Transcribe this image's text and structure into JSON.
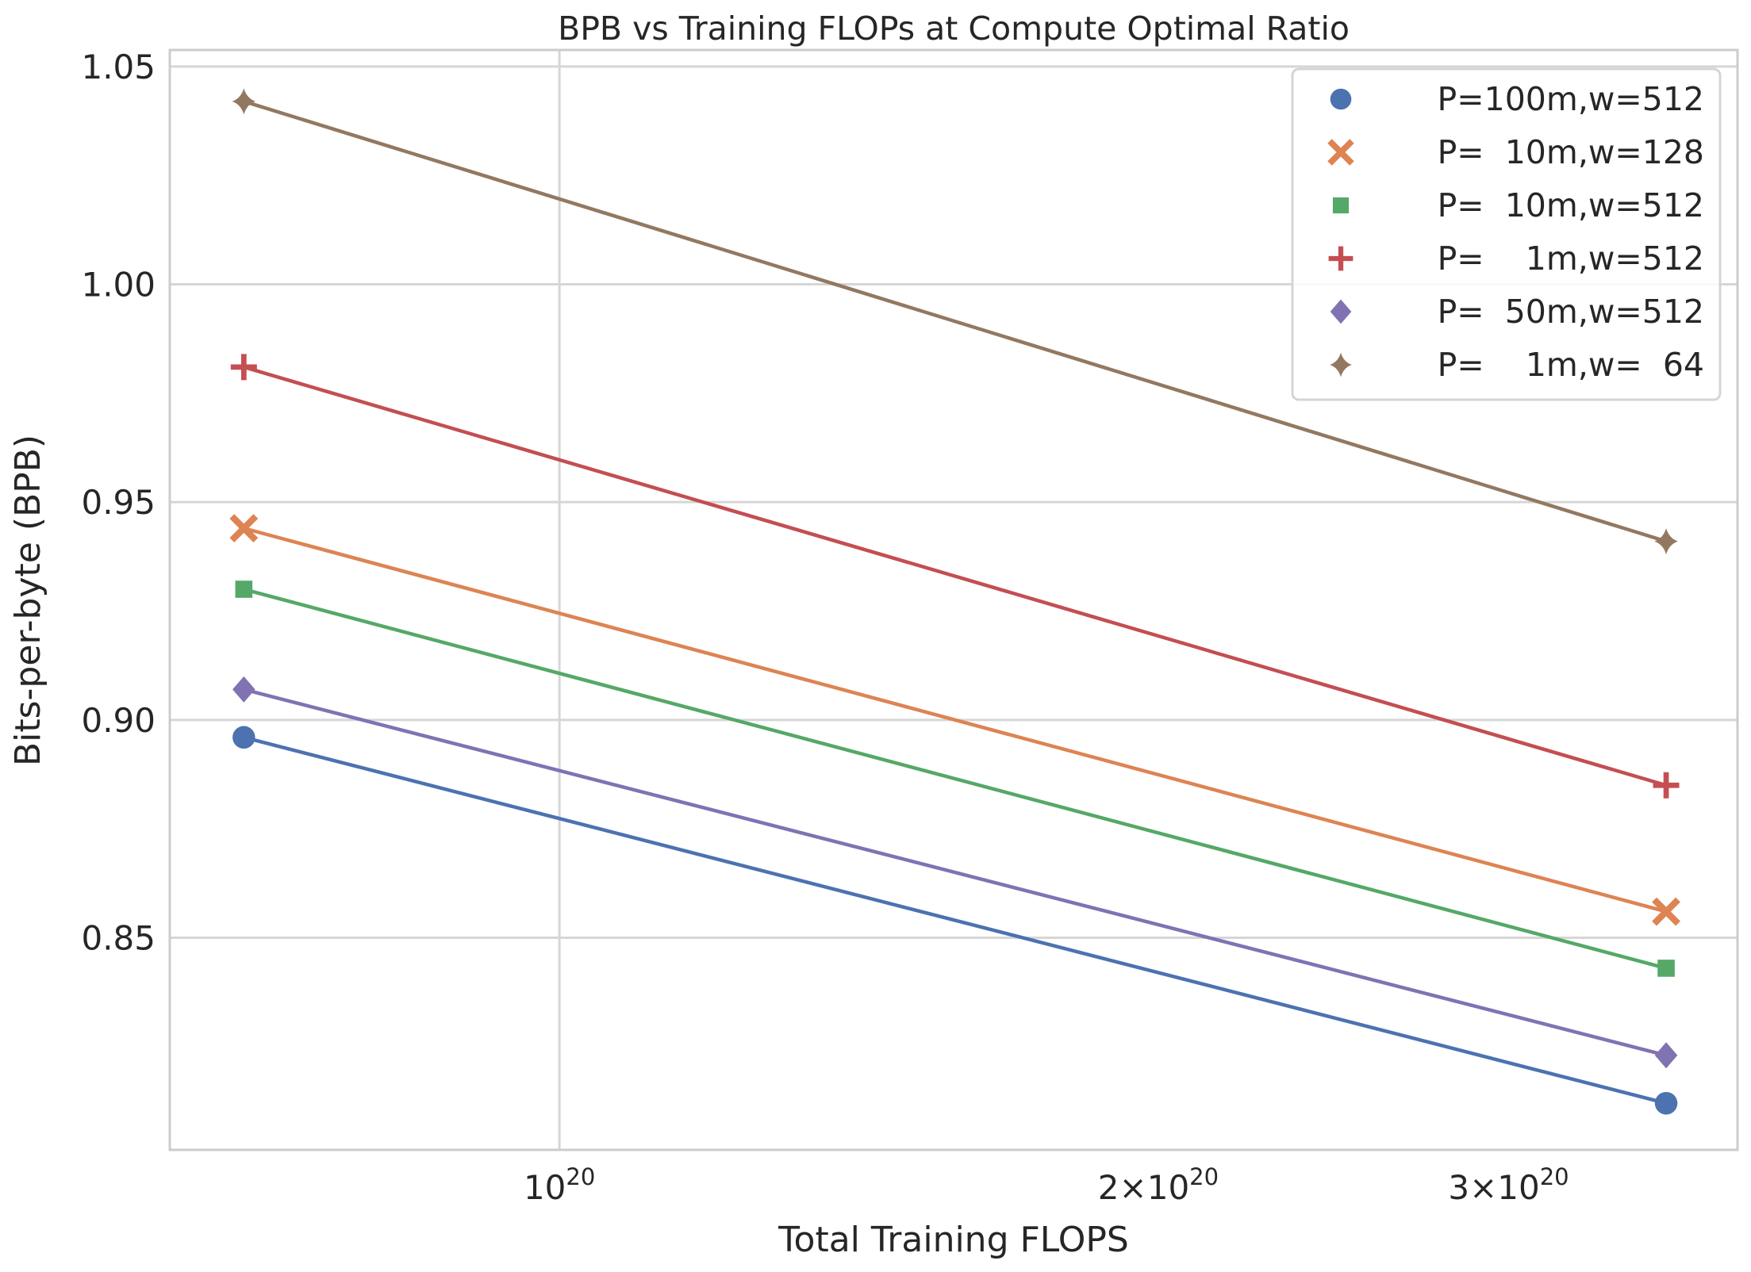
{
  "chart_data": {
    "type": "line",
    "title": "BPB vs Training FLOPs at Compute Optimal Ratio",
    "xlabel": "Total Training FLOPS",
    "ylabel": "Bits-per-byte (BPB)",
    "xscale": "log",
    "xlim": [
      6.37e+19,
      3.91e+20
    ],
    "ylim": [
      0.8013,
      1.0538
    ],
    "x": [
      6.94e+19,
      3.6e+20
    ],
    "xticks": [
      {
        "value": 1e+20,
        "base": "10",
        "exp": "20",
        "mult": ""
      },
      {
        "value": 2e+20,
        "base": "10",
        "exp": "20",
        "mult": "2×"
      },
      {
        "value": 3e+20,
        "base": "10",
        "exp": "20",
        "mult": "3×"
      }
    ],
    "yticks": [
      {
        "value": 0.85,
        "label": "0.85"
      },
      {
        "value": 0.9,
        "label": "0.90"
      },
      {
        "value": 0.95,
        "label": "0.95"
      },
      {
        "value": 1.0,
        "label": "1.00"
      },
      {
        "value": 1.05,
        "label": "1.05"
      }
    ],
    "grid": true,
    "legend_position": "top-right",
    "series": [
      {
        "name": "P=100m,w=512",
        "values": [
          0.896,
          0.812
        ],
        "color": "#4c72b0",
        "marker": "circle"
      },
      {
        "name": "P=  10m,w=128",
        "values": [
          0.944,
          0.856
        ],
        "color": "#dd8452",
        "marker": "x"
      },
      {
        "name": "P=  10m,w=512",
        "values": [
          0.93,
          0.843
        ],
        "color": "#55a868",
        "marker": "square"
      },
      {
        "name": "P=    1m,w=512",
        "values": [
          0.981,
          0.885
        ],
        "color": "#c44e52",
        "marker": "plus"
      },
      {
        "name": "P=  50m,w=512",
        "values": [
          0.907,
          0.823
        ],
        "color": "#8172b3",
        "marker": "diamond"
      },
      {
        "name": "P=    1m,w=  64",
        "values": [
          1.042,
          0.941
        ],
        "color": "#937860",
        "marker": "star4"
      }
    ]
  }
}
